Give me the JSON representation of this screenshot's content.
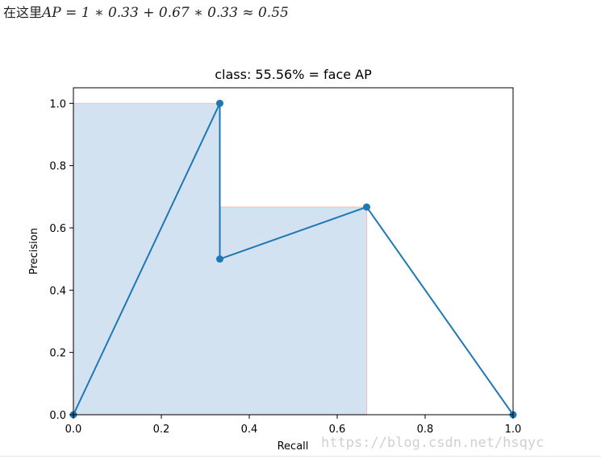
{
  "formula": {
    "prefix": "在这里",
    "math": "AP = 1 ∗ 0.33 + 0.67 ∗ 0.33 ≈ 0.55"
  },
  "watermark": "https://blog.csdn.net/hsqyc",
  "colors": {
    "line": "#1f77b4",
    "fill": "#d3e2f0",
    "fill_edge": "#f2c4c4",
    "axis": "#000000"
  },
  "chart_data": {
    "type": "line",
    "title": "class: 55.56% = face AP",
    "xlabel": "Recall",
    "ylabel": "Precision",
    "xlim": [
      0.0,
      1.0
    ],
    "ylim": [
      0.0,
      1.05
    ],
    "xticks": [
      0.0,
      0.2,
      0.4,
      0.6,
      0.8,
      1.0
    ],
    "yticks": [
      0.0,
      0.2,
      0.4,
      0.6,
      0.8,
      1.0
    ],
    "xtick_labels": [
      "0.0",
      "0.2",
      "0.4",
      "0.6",
      "0.8",
      "1.0"
    ],
    "ytick_labels": [
      "0.0",
      "0.2",
      "0.4",
      "0.6",
      "0.8",
      "1.0"
    ],
    "grid": false,
    "series": [
      {
        "x": [
          0.0,
          0.333,
          0.333,
          0.667,
          1.0
        ],
        "y": [
          0.0,
          1.0,
          0.5,
          0.667,
          0.0
        ],
        "markers": true
      }
    ],
    "filled_area": {
      "x": [
        0.0,
        0.0,
        0.333,
        0.333,
        0.667,
        0.667
      ],
      "y": [
        0.0,
        1.0,
        1.0,
        0.667,
        0.667,
        0.0
      ]
    }
  }
}
